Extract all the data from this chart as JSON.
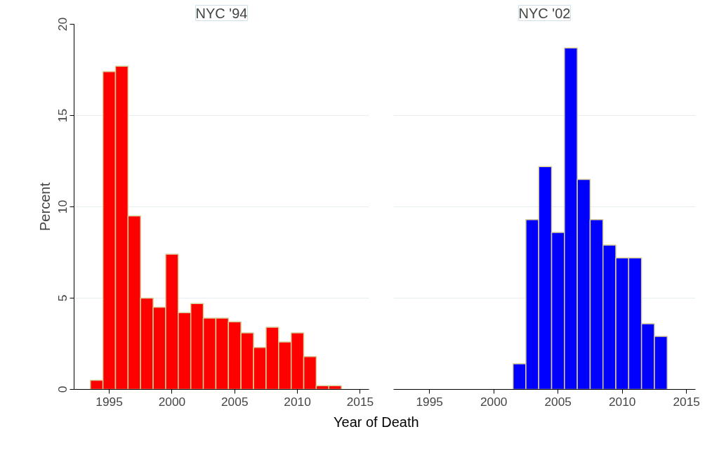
{
  "chart_data": [
    {
      "type": "histogram",
      "title": "NYC '94",
      "ylabel": "Percent",
      "xlabel": "Year of Death",
      "color": "#ff0000",
      "bins": [
        1993.5,
        1994.5,
        1995.5,
        1996.5,
        1997.5,
        1998.5,
        1999.5,
        2000.5,
        2001.5,
        2002.5,
        2003.5,
        2004.5,
        2005.5,
        2006.5,
        2007.5,
        2008.5,
        2009.5,
        2010.5,
        2011.5,
        2012.5,
        2013.5
      ],
      "values": [
        0.5,
        17.4,
        17.7,
        9.5,
        5.0,
        4.5,
        7.4,
        4.2,
        4.7,
        3.9,
        3.9,
        3.7,
        3.1,
        2.3,
        3.4,
        2.6,
        3.1,
        1.8,
        0.2,
        0.2
      ],
      "xlim": [
        1992.2,
        2015.7
      ],
      "xticks": [
        1995,
        2000,
        2005,
        2010,
        2015
      ],
      "ylim": [
        0,
        20
      ],
      "yticks": [
        0,
        5,
        10,
        15,
        20
      ],
      "grid": "y"
    },
    {
      "type": "histogram",
      "title": "NYC '02",
      "color": "#0000ff",
      "bins": [
        2001.5,
        2002.5,
        2003.5,
        2004.5,
        2005.5,
        2006.5,
        2007.5,
        2008.5,
        2009.5,
        2010.5,
        2011.5,
        2012.5,
        2013.5
      ],
      "values": [
        1.4,
        9.3,
        12.2,
        8.6,
        18.7,
        11.5,
        9.3,
        7.9,
        7.2,
        7.2,
        3.6,
        2.9
      ],
      "xlim": [
        1992.2,
        2015.7
      ],
      "xticks": [
        1995,
        2000,
        2005,
        2010,
        2015
      ],
      "ylim": [
        0,
        20
      ],
      "yticks": [
        0,
        5,
        10,
        15,
        20
      ],
      "grid": "y",
      "tick_labels": "x"
    }
  ]
}
